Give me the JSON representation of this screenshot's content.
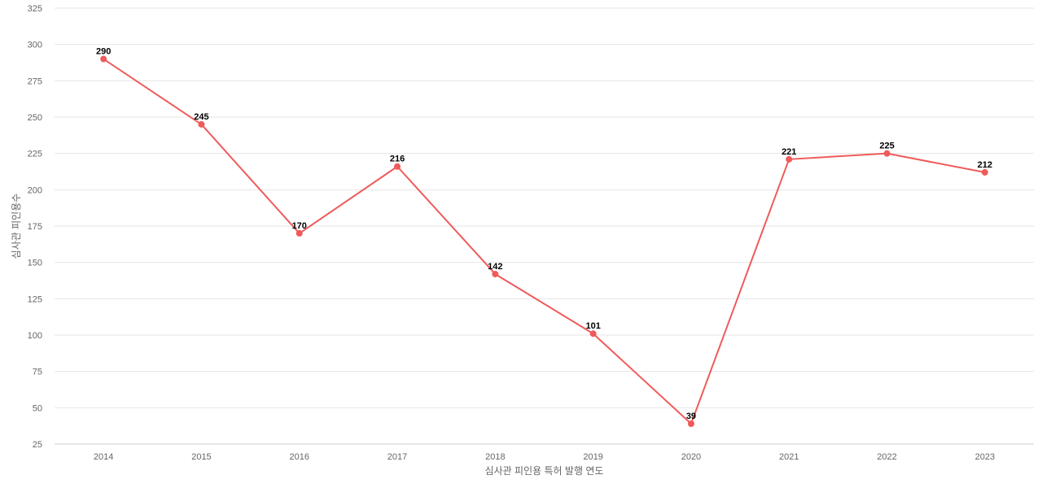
{
  "chart_data": {
    "type": "line",
    "title": "",
    "xlabel": "심사관 피인용 특허 발행 연도",
    "ylabel": "심사관 피인용수",
    "categories": [
      "2014",
      "2015",
      "2016",
      "2017",
      "2018",
      "2019",
      "2020",
      "2021",
      "2022",
      "2023"
    ],
    "series": [
      {
        "values": [
          290,
          245,
          170,
          216,
          142,
          101,
          39,
          221,
          225,
          212
        ],
        "color": "#ef5b5b"
      }
    ],
    "ylim": [
      25,
      325
    ],
    "yticks": [
      25,
      50,
      75,
      100,
      125,
      150,
      175,
      200,
      225,
      250,
      275,
      300,
      325
    ],
    "grid": true,
    "legend": "none",
    "data_labels": true
  }
}
